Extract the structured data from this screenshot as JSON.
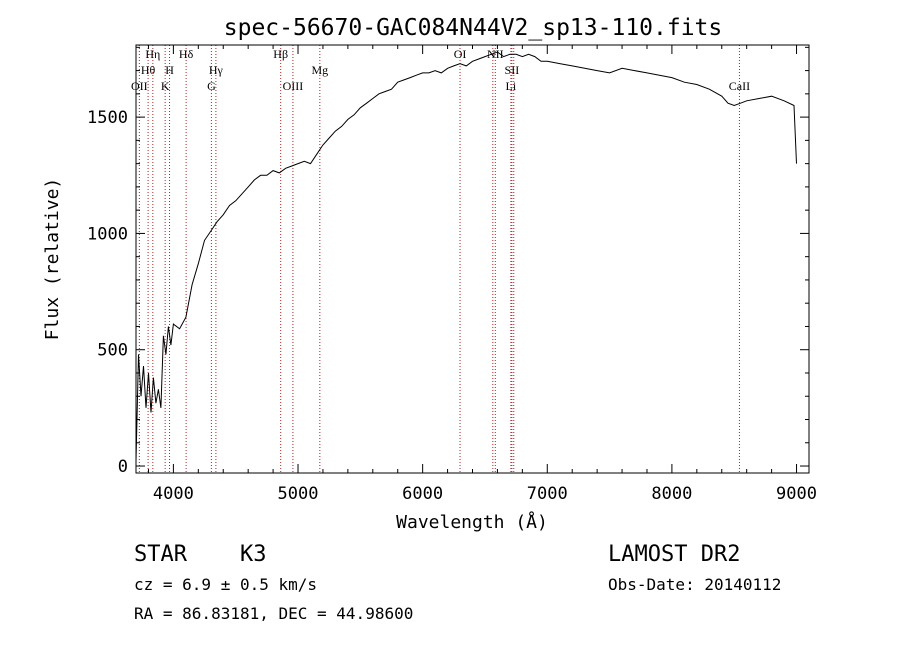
{
  "chart_data": {
    "type": "line",
    "title": "spec-56670-GAC084N44V2_sp13-110.fits",
    "xlabel": "Wavelength (Å)",
    "ylabel": "Flux (relative)",
    "xlim": [
      3700,
      9100
    ],
    "ylim": [
      -30,
      1810
    ],
    "xticks": [
      4000,
      5000,
      6000,
      7000,
      8000,
      9000
    ],
    "xtick_labels": [
      "4000",
      "5000",
      "6000",
      "7000",
      "8000",
      "9000"
    ],
    "yticks": [
      0,
      500,
      1000,
      1500
    ],
    "ytick_labels": [
      "0",
      "500",
      "1000",
      "1500"
    ],
    "grid": false,
    "line_color": "#000000",
    "marker_color": "#b22222",
    "series": [
      {
        "x": [
          3700,
          3720,
          3740,
          3760,
          3780,
          3800,
          3820,
          3840,
          3860,
          3880,
          3900,
          3920,
          3940,
          3960,
          3980,
          4000,
          4050,
          4100,
          4150,
          4200,
          4250,
          4300,
          4350,
          4400,
          4450,
          4500,
          4550,
          4600,
          4650,
          4700,
          4750,
          4800,
          4850,
          4900,
          4950,
          5000,
          5050,
          5100,
          5150,
          5200,
          5250,
          5300,
          5350,
          5400,
          5450,
          5500,
          5550,
          5600,
          5650,
          5700,
          5750,
          5800,
          5850,
          5900,
          5950,
          6000,
          6050,
          6100,
          6150,
          6200,
          6250,
          6300,
          6350,
          6400,
          6450,
          6500,
          6550,
          6600,
          6650,
          6700,
          6750,
          6800,
          6850,
          6900,
          6950,
          7000,
          7100,
          7200,
          7300,
          7400,
          7500,
          7600,
          7700,
          7800,
          7900,
          8000,
          8100,
          8200,
          8300,
          8400,
          8450,
          8500,
          8550,
          8600,
          8700,
          8800,
          8900,
          8980,
          9000
        ],
        "y": [
          20,
          480,
          300,
          430,
          250,
          400,
          230,
          380,
          270,
          330,
          250,
          560,
          480,
          600,
          520,
          610,
          590,
          640,
          780,
          870,
          970,
          1010,
          1050,
          1080,
          1120,
          1140,
          1170,
          1200,
          1230,
          1250,
          1250,
          1270,
          1260,
          1280,
          1290,
          1300,
          1310,
          1300,
          1340,
          1380,
          1410,
          1440,
          1460,
          1490,
          1510,
          1540,
          1560,
          1580,
          1600,
          1610,
          1620,
          1650,
          1660,
          1670,
          1680,
          1690,
          1690,
          1700,
          1690,
          1710,
          1720,
          1730,
          1720,
          1740,
          1750,
          1760,
          1770,
          1780,
          1760,
          1770,
          1770,
          1760,
          1770,
          1760,
          1740,
          1740,
          1730,
          1720,
          1710,
          1700,
          1690,
          1710,
          1700,
          1690,
          1680,
          1670,
          1650,
          1640,
          1620,
          1590,
          1560,
          1550,
          1560,
          1570,
          1580,
          1590,
          1570,
          1550,
          1300
        ]
      }
    ],
    "spectral_lines": [
      {
        "name": "OII",
        "wavelength": 3727
      },
      {
        "name": "Hθ",
        "wavelength": 3797
      },
      {
        "name": "Hη",
        "wavelength": 3835
      },
      {
        "name": "K",
        "wavelength": 3934
      },
      {
        "name": "H",
        "wavelength": 3969
      },
      {
        "name": "Hδ",
        "wavelength": 4102
      },
      {
        "name": "G",
        "wavelength": 4305
      },
      {
        "name": "Hγ",
        "wavelength": 4341
      },
      {
        "name": "Hβ",
        "wavelength": 4861
      },
      {
        "name": "OIII",
        "wavelength": 4959
      },
      {
        "name": "Mg",
        "wavelength": 5175
      },
      {
        "name": "OI",
        "wavelength": 6300
      },
      {
        "name": "Hα",
        "wavelength": 6563
      },
      {
        "name": "NII",
        "wavelength": 6583
      },
      {
        "name": "Li",
        "wavelength": 6708
      },
      {
        "name": "SII",
        "wavelength": 6716
      },
      {
        "name": "SII",
        "wavelength": 6731
      },
      {
        "name": "CaII",
        "wavelength": 8542
      }
    ],
    "line_label_text": {
      "OII": "OII",
      "Hθ": "Hθ",
      "Hη": "Hη",
      "K": "K",
      "H": "H",
      "Hδ": "Hδ",
      "G": "G",
      "Hγ": "Hγ",
      "Hβ": "Hβ",
      "OIII": "OIII",
      "Mg": "Mg",
      "OI": "OI",
      "NII": "NII",
      "Li": "Li",
      "SII": "SII",
      "CaII": "CaII"
    }
  },
  "info": {
    "class_label": "STAR",
    "subclass": "K3",
    "survey": "LAMOST DR2",
    "redshift": "cz =  6.9 ± 0.5 km/s",
    "obs_date": "Obs-Date: 20140112",
    "coords": "RA =  86.83181, DEC =  44.98600"
  }
}
